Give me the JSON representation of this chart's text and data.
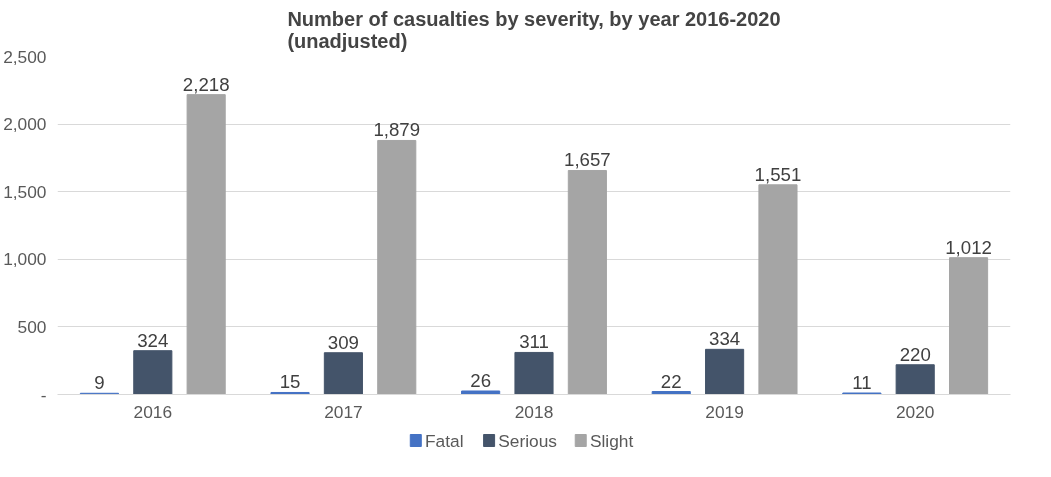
{
  "chart_data": {
    "type": "bar",
    "title": "Number of casualties by severity, by year 2016-2020\n(unadjusted)",
    "categories": [
      "2016",
      "2017",
      "2018",
      "2019",
      "2020"
    ],
    "series": [
      {
        "name": "Fatal",
        "color": "#4472c4",
        "values": [
          9,
          15,
          26,
          22,
          11
        ],
        "value_labels": [
          "9",
          "15",
          "26",
          "22",
          "11"
        ]
      },
      {
        "name": "Serious",
        "color": "#44546a",
        "values": [
          324,
          309,
          311,
          334,
          220
        ],
        "value_labels": [
          "324",
          "309",
          "311",
          "334",
          "220"
        ]
      },
      {
        "name": "Slight",
        "color": "#a5a5a5",
        "values": [
          2218,
          1879,
          1657,
          1551,
          1012
        ],
        "value_labels": [
          "2,218",
          "1,879",
          "1,657",
          "1,551",
          "1,012"
        ]
      }
    ],
    "ylim": [
      0,
      2500
    ],
    "yticks": [
      {
        "value": 0,
        "label": "-"
      },
      {
        "value": 500,
        "label": "500"
      },
      {
        "value": 1000,
        "label": "1,000"
      },
      {
        "value": 1500,
        "label": "1,500"
      },
      {
        "value": 2000,
        "label": "2,000"
      },
      {
        "value": 2500,
        "label": "2,500"
      }
    ],
    "grid": "y",
    "legend": "bottom"
  }
}
